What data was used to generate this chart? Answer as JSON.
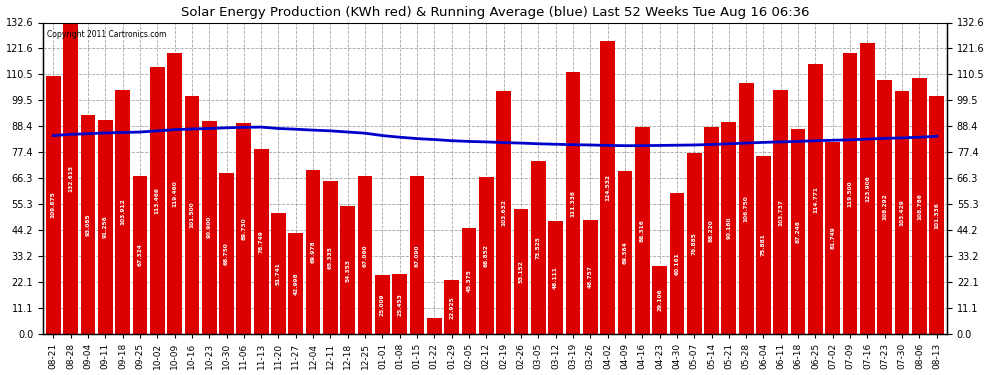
{
  "title": "Solar Energy Production (KWh red) & Running Average (blue) Last 52 Weeks Tue Aug 16 06:36",
  "copyright": "Copyright 2011 Cartronics.com",
  "bar_color": "#dd0000",
  "line_color": "#0000cc",
  "background_color": "#ffffff",
  "plot_background": "#ffffff",
  "ylim": [
    0.0,
    132.6
  ],
  "yticks": [
    0.0,
    11.1,
    22.1,
    33.2,
    44.2,
    55.3,
    66.3,
    77.4,
    88.4,
    99.5,
    110.5,
    121.6,
    132.6
  ],
  "categories": [
    "08-21",
    "08-28",
    "09-04",
    "09-11",
    "09-18",
    "09-25",
    "10-02",
    "10-09",
    "10-16",
    "10-23",
    "10-30",
    "11-06",
    "11-13",
    "11-20",
    "11-27",
    "12-04",
    "12-11",
    "12-18",
    "12-25",
    "01-01",
    "01-08",
    "01-15",
    "01-22",
    "01-29",
    "02-05",
    "02-12",
    "02-19",
    "02-26",
    "03-05",
    "03-12",
    "03-19",
    "03-26",
    "04-02",
    "04-09",
    "04-16",
    "04-23",
    "04-30",
    "05-07",
    "05-14",
    "05-21",
    "05-28",
    "06-04",
    "06-11",
    "06-18",
    "06-25",
    "07-02",
    "07-09",
    "07-16",
    "07-23",
    "07-30",
    "08-06",
    "08-13"
  ],
  "values": [
    109.875,
    132.615,
    93.085,
    91.256,
    103.912,
    67.324,
    113.466,
    119.46,
    101.5,
    90.9,
    68.75,
    89.73,
    78.749,
    51.741,
    42.998,
    69.978,
    65.335,
    54.353,
    67.09,
    25.009,
    25.453,
    67.09,
    7.009,
    22.925,
    45.375,
    66.852,
    103.632,
    53.152,
    73.525,
    48.111,
    111.336,
    48.757,
    124.532,
    69.364,
    88.316,
    29.106,
    60.161,
    76.885,
    88.22,
    90.16,
    106.75,
    75.881,
    103.737,
    87.248,
    114.771,
    81.749,
    119.5,
    123.906,
    108.292,
    103.429,
    108.786,
    101.336
  ],
  "running_avg": [
    84.5,
    85.0,
    85.3,
    85.6,
    85.8,
    86.0,
    86.5,
    87.0,
    87.3,
    87.5,
    87.8,
    88.0,
    88.1,
    87.5,
    87.2,
    86.8,
    86.5,
    86.0,
    85.5,
    84.5,
    83.8,
    83.2,
    82.8,
    82.3,
    82.0,
    81.8,
    81.5,
    81.3,
    81.0,
    80.8,
    80.6,
    80.5,
    80.3,
    80.2,
    80.2,
    80.3,
    80.4,
    80.5,
    80.7,
    81.0,
    81.3,
    81.6,
    81.8,
    82.0,
    82.3,
    82.5,
    82.7,
    83.0,
    83.3,
    83.5,
    83.8,
    84.2
  ]
}
